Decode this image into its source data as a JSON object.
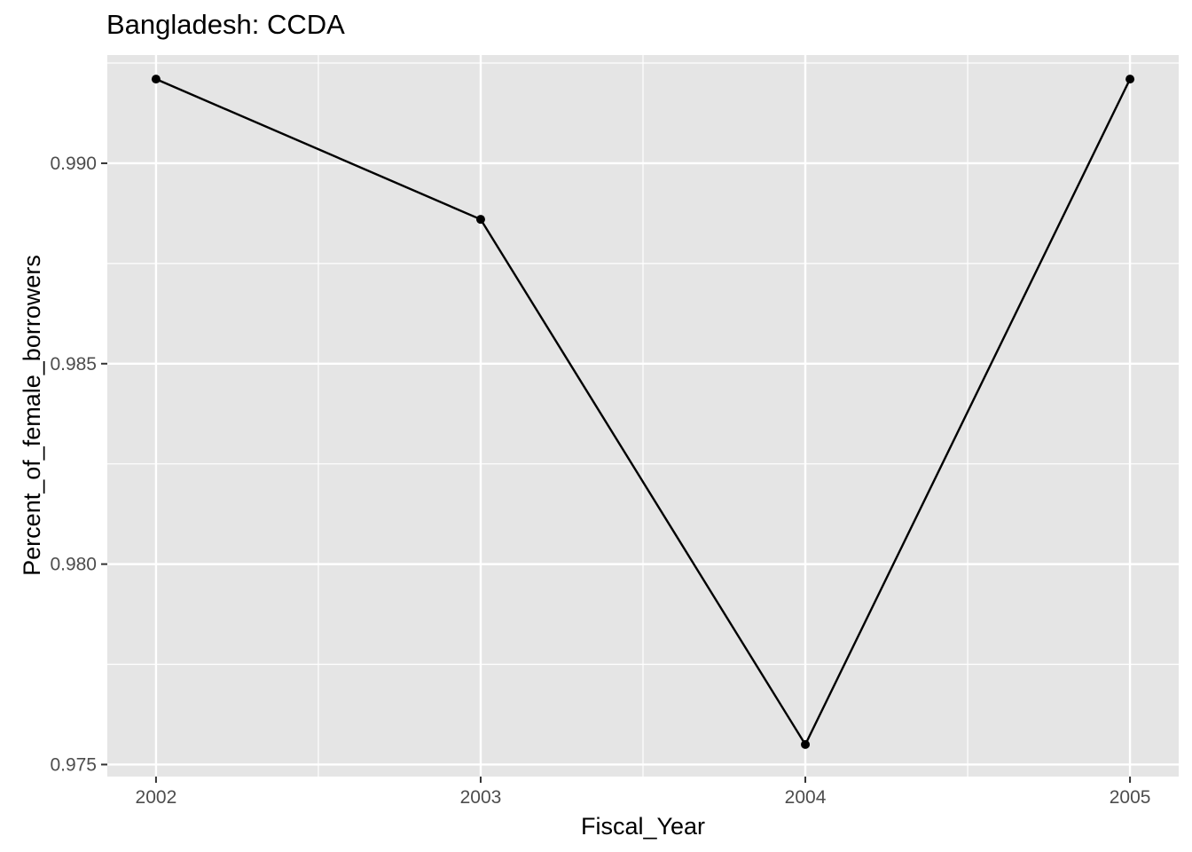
{
  "chart_data": {
    "type": "line",
    "title": "Bangladesh:  CCDA",
    "xlabel": "Fiscal_Year",
    "ylabel": "Percent_of_female_borrowers",
    "x": [
      2002,
      2003,
      2004,
      2005
    ],
    "x_tick_labels": [
      "2002",
      "2003",
      "2004",
      "2005"
    ],
    "y_tick_values": [
      0.975,
      0.98,
      0.985,
      0.99
    ],
    "y_tick_labels": [
      "0.975",
      "0.980",
      "0.985",
      "0.990"
    ],
    "xlim": [
      2001.85,
      2005.15
    ],
    "ylim": [
      0.9747,
      0.9927
    ],
    "series": [
      {
        "values": [
          0.9921,
          0.9886,
          0.9755,
          0.9921
        ]
      }
    ],
    "grid": true,
    "legend": "none",
    "colors": {
      "panel": "#e5e5e5",
      "grid": "#ffffff",
      "line": "#000000",
      "tick_text": "#4d4d4d"
    }
  }
}
